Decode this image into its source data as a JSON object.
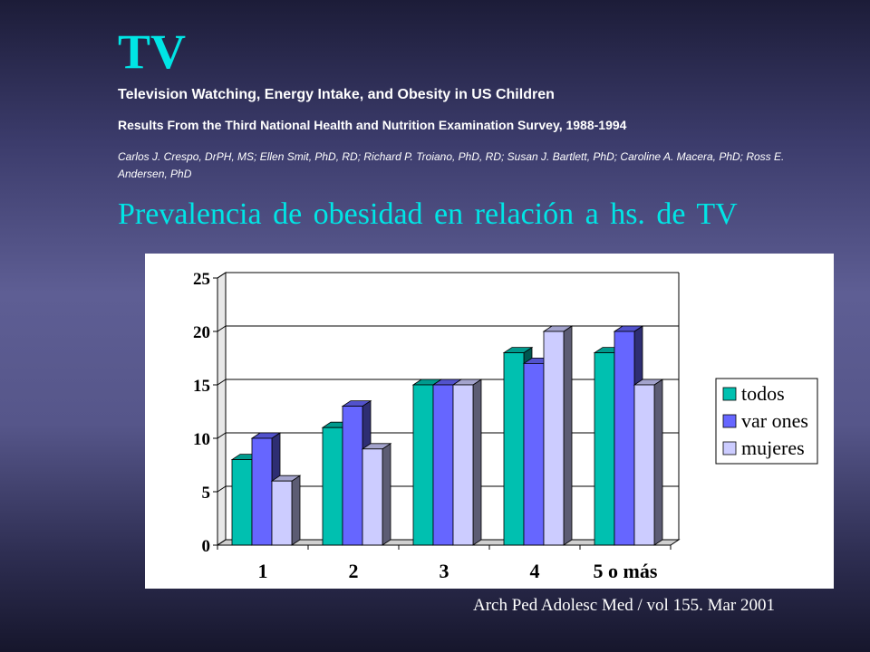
{
  "slide": {
    "title": "TV",
    "subtitle": "Television Watching, Energy Intake, and Obesity in US Children",
    "study": "Results From the Third National Health and Nutrition Examination Survey, 1988-1994",
    "authors": "Carlos J. Crespo, DrPH, MS; Ellen Smit, PhD, RD; Richard P. Troiano, PhD, RD; Susan J. Bartlett, PhD; Caroline A. Macera, PhD; Ross E. Andersen, PhD",
    "heading": "Prevalencia de obesidad en relación a hs. de TV",
    "citation": "Arch Ped Adolesc Med / vol 155. Mar 2001"
  },
  "chart_data": {
    "type": "bar",
    "categories": [
      "1",
      "2",
      "3",
      "4",
      "5  o más"
    ],
    "series": [
      {
        "name": "todos",
        "values": [
          8,
          11,
          15,
          18,
          18
        ],
        "color": "#00c0b0"
      },
      {
        "name": "var ones",
        "values": [
          10,
          13,
          15,
          17,
          20
        ],
        "color": "#6666ff"
      },
      {
        "name": "mujeres",
        "values": [
          6,
          9,
          15,
          20,
          15
        ],
        "color": "#ccccff"
      }
    ],
    "yticks": [
      "0",
      "5",
      "10",
      "15",
      "20",
      "25"
    ],
    "ylim": [
      0,
      25
    ],
    "grid": true,
    "legend": "right"
  }
}
